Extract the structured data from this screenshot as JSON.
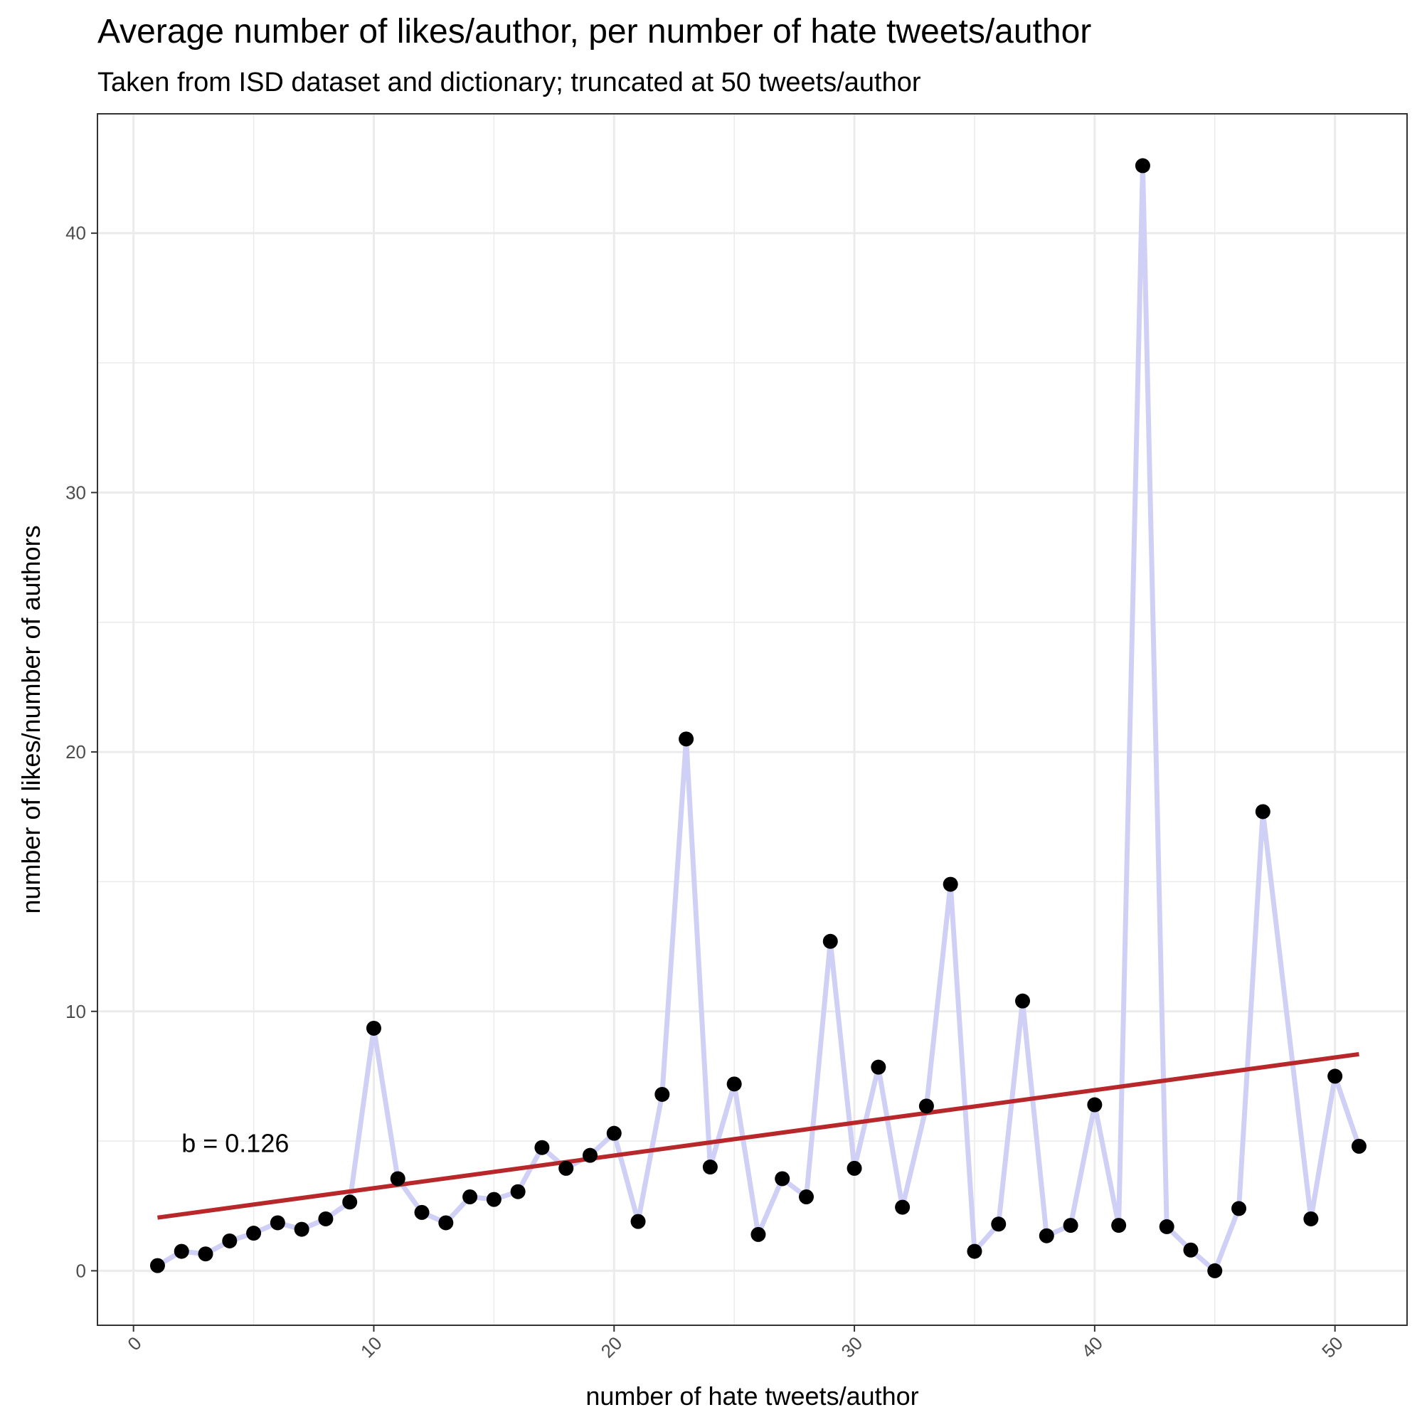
{
  "chart_data": {
    "type": "line",
    "title": "Average number of likes/author, per number of hate tweets/author",
    "subtitle": "Taken from ISD dataset and dictionary; truncated at 50 tweets/author",
    "xlabel": "number of hate tweets/author",
    "ylabel": "number of likes/number of authors",
    "xlim": [
      -1.5,
      53.0
    ],
    "ylim": [
      -2.1,
      44.6
    ],
    "x_ticks": [
      0,
      10,
      20,
      30,
      40,
      50
    ],
    "y_ticks": [
      0,
      10,
      20,
      30,
      40
    ],
    "grid": true,
    "annotation": {
      "text": "b = 0.126",
      "x": 2,
      "y": 4.9
    },
    "series": [
      {
        "x": [
          1,
          2,
          3,
          4,
          5,
          6,
          7,
          8,
          9,
          10,
          11,
          12,
          13,
          14,
          15,
          16,
          17,
          18,
          19,
          20,
          21,
          22,
          23,
          24,
          25,
          26,
          27,
          28,
          29,
          30,
          31,
          32,
          33,
          34,
          35,
          36,
          37,
          38,
          39,
          40,
          41,
          42,
          43,
          44,
          45,
          46,
          47,
          48,
          49,
          50,
          51
        ],
        "y": [
          0.2,
          0.75,
          0.65,
          1.15,
          1.45,
          1.85,
          1.6,
          2.0,
          2.65,
          9.35,
          3.55,
          2.25,
          1.85,
          2.85,
          2.75,
          3.05,
          4.75,
          3.95,
          4.45,
          5.3,
          1.9,
          6.8,
          20.5,
          4.0,
          7.2,
          1.4,
          3.55,
          2.85,
          12.7,
          3.95,
          7.85,
          2.45,
          6.35,
          14.9,
          0.75,
          1.8,
          10.4,
          1.35,
          1.75,
          6.4,
          1.75,
          42.6,
          1.7,
          0.8,
          0.0,
          2.4,
          17.7,
          null,
          2.0,
          7.5,
          4.8
        ],
        "line_color": "#d0d0f7",
        "point_color": "#000000"
      }
    ],
    "trend_line": {
      "x": [
        1,
        51
      ],
      "y": [
        2.05,
        8.35
      ],
      "color": "#b8282b"
    }
  }
}
